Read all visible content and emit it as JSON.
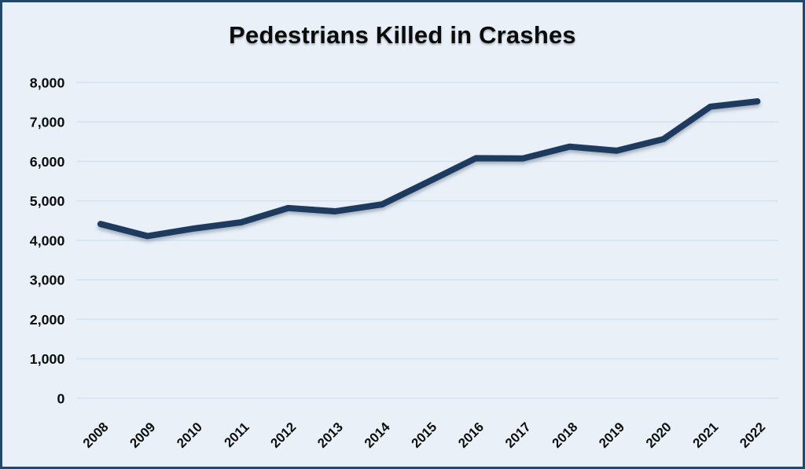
{
  "chart_data": {
    "type": "line",
    "title": "Pedestrians Killed in Crashes",
    "categories": [
      "2008",
      "2009",
      "2010",
      "2011",
      "2012",
      "2013",
      "2014",
      "2015",
      "2016",
      "2017",
      "2018",
      "2019",
      "2020",
      "2021",
      "2022"
    ],
    "series": [
      {
        "name": "Pedestrians killed",
        "values": [
          4414,
          4109,
          4302,
          4457,
          4818,
          4735,
          4910,
          5494,
          6080,
          6075,
          6374,
          6272,
          6565,
          7388,
          7522
        ]
      }
    ],
    "xlabel": "",
    "ylabel": "",
    "ylim": [
      0,
      8000
    ],
    "yticks": [
      0,
      1000,
      2000,
      3000,
      4000,
      5000,
      6000,
      7000,
      8000
    ],
    "ytick_labels": [
      "0",
      "1,000",
      "2,000",
      "3,000",
      "4,000",
      "5,000",
      "6,000",
      "7,000",
      "8,000"
    ],
    "grid": "horizontal",
    "legend": "none",
    "colors": {
      "line": "#1f3b5e",
      "background": "#e9f0f8",
      "border": "#23486b",
      "gridline": "#d5e3f1",
      "text": "#0c0d0e",
      "title": "#0b0b0c"
    }
  }
}
